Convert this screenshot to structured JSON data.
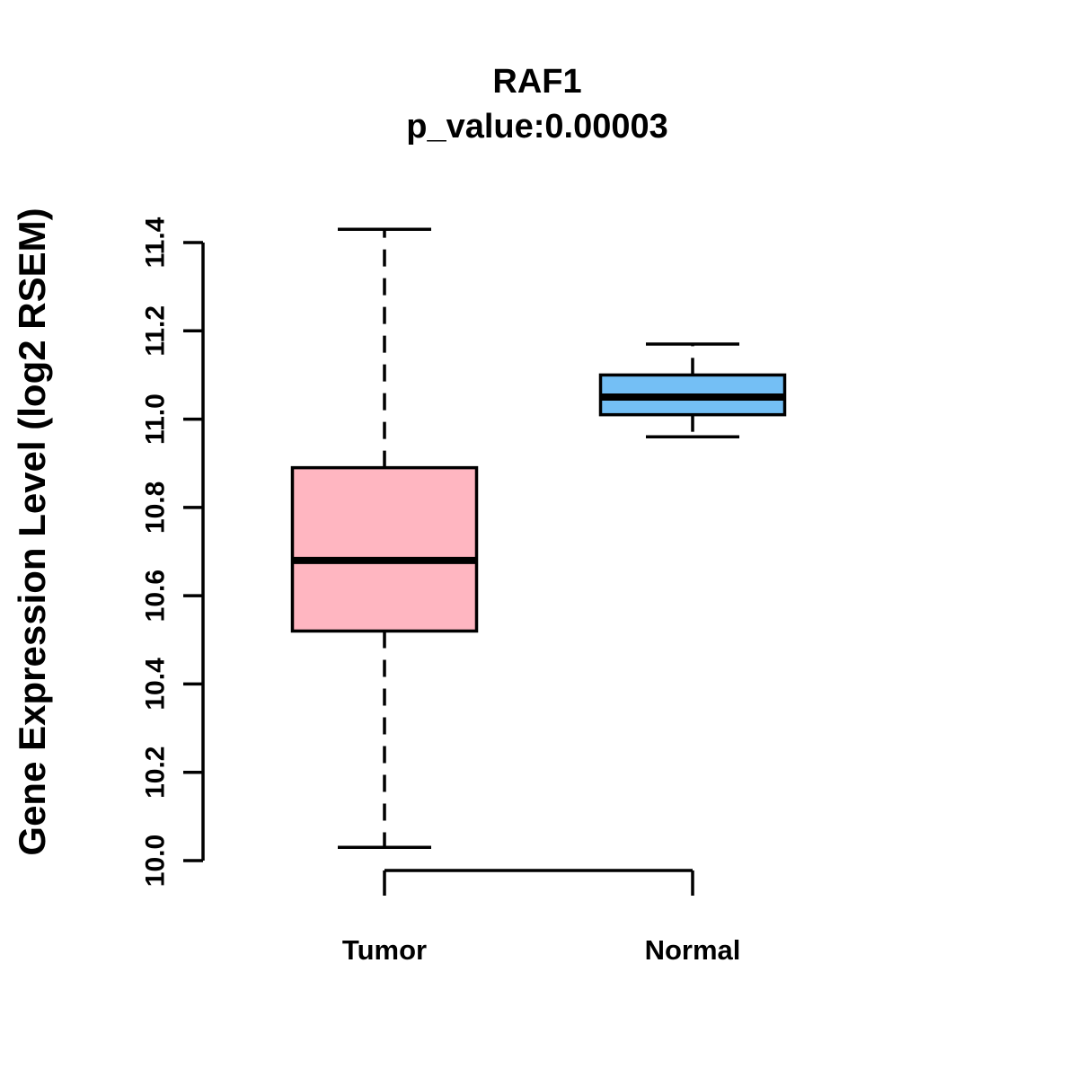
{
  "chart_data": {
    "type": "boxplot",
    "title": "RAF1",
    "subtitle": "p_value:0.00003",
    "ylabel": "Gene Expression Level (log2 RSEM)",
    "categories": [
      "Tumor",
      "Normal"
    ],
    "series": [
      {
        "name": "Tumor",
        "color": "#FFB6C1",
        "whisker_low": 10.03,
        "q1": 10.52,
        "median": 10.68,
        "q3": 10.89,
        "whisker_high": 11.43
      },
      {
        "name": "Normal",
        "color": "#74BFF5",
        "whisker_low": 10.96,
        "q1": 11.01,
        "median": 11.05,
        "q3": 11.1,
        "whisker_high": 11.17
      }
    ],
    "yticks": [
      10.0,
      10.2,
      10.4,
      10.6,
      10.8,
      11.0,
      11.2,
      11.4
    ],
    "ytick_labels": [
      "10.0",
      "10.2",
      "10.4",
      "10.6",
      "10.8",
      "11.0",
      "11.2",
      "11.4"
    ],
    "ylim": [
      10.0,
      11.4
    ],
    "grid": false,
    "legend": "none",
    "line_color": "#000000"
  }
}
